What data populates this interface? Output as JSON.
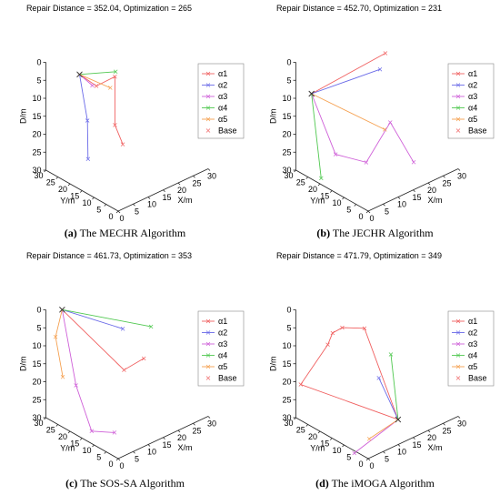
{
  "chart_data": [
    {
      "type": "line3d",
      "title": "Repair Distance = 352.04, Optimization = 265",
      "caption_label": "(a)",
      "caption_text": "The MECHR Algorithm",
      "xlabel": "X/m",
      "ylabel": "Y/m",
      "zlabel": "D/m",
      "xticks": [
        "0",
        "5",
        "10",
        "15",
        "20",
        "25",
        "30"
      ],
      "yticks": [
        "0",
        "5",
        "10",
        "15",
        "20",
        "25",
        "30"
      ],
      "zticks": [
        "0",
        "5",
        "10",
        "15",
        "20",
        "25",
        "30"
      ],
      "legend": [
        "α1",
        "α2",
        "α3",
        "α4",
        "α5",
        "Base"
      ],
      "series": [
        {
          "name": "α1",
          "points": [
            [
              8,
              26,
              5
            ],
            [
              12,
              24,
              9
            ],
            [
              23,
              30,
              13
            ],
            [
              19,
              25,
              23
            ],
            [
              20,
              23,
              28
            ]
          ]
        },
        {
          "name": "α2",
          "points": [
            [
              8,
              26,
              5
            ],
            [
              5,
              19,
              14
            ],
            [
              2,
              15,
              22
            ]
          ]
        },
        {
          "name": "α3",
          "points": [
            [
              8,
              26,
              5
            ],
            [
              1,
              12,
              0
            ]
          ]
        },
        {
          "name": "α4",
          "points": [
            [
              8,
              26,
              5
            ],
            [
              12,
              16,
              2
            ]
          ]
        },
        {
          "name": "α5",
          "points": [
            [
              8,
              26,
              5
            ],
            [
              7,
              12,
              3
            ]
          ]
        }
      ],
      "base": [
        8,
        26,
        5
      ]
    },
    {
      "type": "line3d",
      "title": "Repair Distance = 452.70, Optimization = 231",
      "caption_label": "(b)",
      "caption_text": "The JECHR Algorithm",
      "xlabel": "X/m",
      "ylabel": "Y/m",
      "zlabel": "D/m",
      "xticks": [
        "0",
        "5",
        "10",
        "15",
        "20",
        "25",
        "30"
      ],
      "yticks": [
        "0",
        "5",
        "10",
        "15",
        "20",
        "25",
        "30"
      ],
      "zticks": [
        "0",
        "5",
        "10",
        "15",
        "20",
        "25",
        "30"
      ],
      "legend": [
        "α1",
        "α2",
        "α3",
        "α4",
        "α5",
        "Base"
      ],
      "series": [
        {
          "name": "α1",
          "points": [
            [
              2,
              26,
              8
            ],
            [
              25,
              24,
              5
            ]
          ]
        },
        {
          "name": "α2",
          "points": [
            [
              2,
              26,
              8
            ],
            [
              20,
              20,
              6
            ]
          ]
        },
        {
          "name": "α3",
          "points": [
            [
              2,
              26,
              8
            ],
            [
              10,
              26,
              28
            ],
            [
              13,
              17,
              28
            ],
            [
              21,
              17,
              20
            ],
            [
              24,
              11,
              30
            ]
          ]
        },
        {
          "name": "α4",
          "points": [
            [
              2,
              26,
              8
            ],
            [
              2,
              22,
              30
            ]
          ]
        },
        {
          "name": "α5",
          "points": [
            [
              2,
              26,
              8
            ],
            [
              20,
              18,
              22
            ]
          ]
        }
      ],
      "base": [
        2,
        26,
        8
      ]
    },
    {
      "type": "line3d",
      "title": "Repair Distance = 461.73, Optimization = 353",
      "caption_label": "(c)",
      "caption_text": "The SOS-SA Algorithm",
      "xlabel": "X/m",
      "ylabel": "Y/m",
      "zlabel": "D/m",
      "xticks": [
        "0",
        "5",
        "10",
        "15",
        "20",
        "25",
        "30"
      ],
      "yticks": [
        "0",
        "5",
        "10",
        "15",
        "20",
        "25",
        "30"
      ],
      "zticks": [
        "0",
        "5",
        "10",
        "15",
        "20",
        "25",
        "30"
      ],
      "legend": [
        "α1",
        "α2",
        "α3",
        "α4",
        "α5",
        "Base"
      ],
      "series": [
        {
          "name": "α1",
          "points": [
            [
              3,
              27,
              0
            ],
            [
              18,
              20,
              20
            ],
            [
              23,
              18,
              18
            ]
          ]
        },
        {
          "name": "α2",
          "points": [
            [
              3,
              27,
              0
            ],
            [
              16,
              18,
              7
            ]
          ]
        },
        {
          "name": "α3",
          "points": [
            [
              3,
              27,
              0
            ],
            [
              2,
              20,
              18
            ],
            [
              4,
              16,
              30
            ],
            [
              10,
              14,
              32
            ]
          ]
        },
        {
          "name": "α4",
          "points": [
            [
              3,
              27,
              0
            ],
            [
              23,
              15,
              8
            ]
          ]
        },
        {
          "name": "α5",
          "points": [
            [
              3,
              27,
              0
            ],
            [
              0,
              26,
              6
            ],
            [
              0,
              23,
              16
            ]
          ]
        }
      ],
      "base": [
        3,
        27,
        0
      ]
    },
    {
      "type": "line3d",
      "title": "Repair Distance = 471.79, Optimization = 349",
      "caption_label": "(d)",
      "caption_text": "The iMOGA Algorithm",
      "xlabel": "X/m",
      "ylabel": "Y/m",
      "zlabel": "D/m",
      "xticks": [
        "0",
        "5",
        "10",
        "15",
        "20",
        "25",
        "30"
      ],
      "yticks": [
        "0",
        "5",
        "10",
        "15",
        "20",
        "25",
        "30"
      ],
      "zticks": [
        "0",
        "5",
        "10",
        "15",
        "20",
        "25",
        "30"
      ],
      "legend": [
        "α1",
        "α2",
        "α3",
        "α4",
        "α5",
        "Base"
      ],
      "series": [
        {
          "name": "α1",
          "points": [
            [
              18,
              10,
              30
            ],
            [
              0,
              28,
              20
            ],
            [
              5,
              23,
              9
            ],
            [
              5,
              21,
              5
            ],
            [
              5,
              17,
              2
            ],
            [
              10,
              14,
              3
            ],
            [
              18,
              10,
              30
            ]
          ]
        },
        {
          "name": "α2",
          "points": [
            [
              18,
              10,
              30
            ],
            [
              14,
              13,
              18
            ]
          ]
        },
        {
          "name": "α3",
          "points": [
            [
              18,
              10,
              30
            ],
            [
              5,
              12,
              35
            ]
          ]
        },
        {
          "name": "α4",
          "points": [
            [
              18,
              10,
              30
            ],
            [
              18,
              13,
              13
            ]
          ]
        },
        {
          "name": "α5",
          "points": [
            [
              18,
              10,
              30
            ],
            [
              10,
              12,
              33
            ]
          ]
        }
      ],
      "base": [
        18,
        10,
        30
      ]
    }
  ],
  "colors": {
    "α1": "#f06060",
    "α2": "#6a6ae8",
    "α3": "#cf60d8",
    "α4": "#50c850",
    "α5": "#f5a050",
    "Base": "#f07070",
    "axis": "#222222"
  }
}
